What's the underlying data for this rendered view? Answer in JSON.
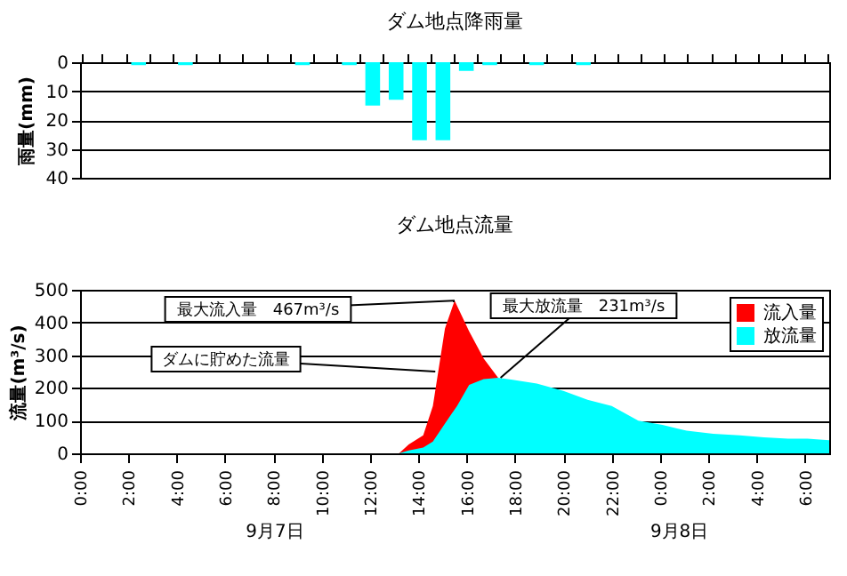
{
  "chart_data": [
    {
      "type": "bar",
      "title": "ダム地点降雨量",
      "ylabel": "雨量(mm)",
      "categories": [
        null,
        null,
        null,
        null,
        null,
        null,
        null,
        null,
        null,
        null,
        null,
        null,
        null,
        null,
        null,
        null,
        null,
        null,
        null,
        null,
        null,
        null,
        null,
        null,
        null,
        null,
        null,
        null,
        null,
        null,
        null,
        null
      ],
      "values": [
        null,
        null,
        1,
        null,
        1,
        null,
        null,
        null,
        null,
        1,
        null,
        1,
        15,
        13,
        27,
        27,
        3,
        1,
        null,
        1,
        null,
        1,
        null,
        null,
        null,
        null,
        null,
        null,
        null,
        null,
        null,
        null
      ],
      "color": "#00ffff",
      "ylim": [
        40,
        0
      ],
      "yticks": [
        0,
        10,
        20,
        30,
        40
      ],
      "grid": "y"
    },
    {
      "type": "area",
      "title": "ダム地点流量",
      "ylabel": "流量(m³/s)",
      "xlim": [
        "--09-07T00:00",
        "--09-08T07:00"
      ],
      "xticks": [
        {
          "value": "--09-07T00:00",
          "label": "0:00"
        },
        {
          "value": "--09-07T02:00",
          "label": "2:00"
        },
        {
          "value": "--09-07T04:00",
          "label": "4:00"
        },
        {
          "value": "--09-07T06:00",
          "label": "6:00"
        },
        {
          "value": "--09-07T08:00",
          "label": "8:00"
        },
        {
          "value": "--09-07T10:00",
          "label": "10:00"
        },
        {
          "value": "--09-07T12:00",
          "label": "12:00"
        },
        {
          "value": "--09-07T14:00",
          "label": "14:00"
        },
        {
          "value": "--09-07T16:00",
          "label": "16:00"
        },
        {
          "value": "--09-07T18:00",
          "label": "18:00"
        },
        {
          "value": "--09-07T20:00",
          "label": "20:00"
        },
        {
          "value": "--09-07T22:00",
          "label": "22:00"
        },
        {
          "value": "--09-08T00:00",
          "label": "0:00"
        },
        {
          "value": "--09-08T02:00",
          "label": "2:00"
        },
        {
          "value": "--09-08T04:00",
          "label": "4:00"
        },
        {
          "value": "--09-08T06:00",
          "label": "6:00"
        }
      ],
      "ylim": [
        0,
        500
      ],
      "yticks": [
        0,
        100,
        200,
        300,
        400,
        500
      ],
      "grid": "y",
      "legend": "top right",
      "series": [
        {
          "name": "流入量",
          "color": "#ff0000",
          "x": [
            "--09-07T00:00",
            "--09-07T13:12",
            "--09-07T13:36",
            "--09-07T14:12",
            "--09-07T14:36",
            "--09-07T15:06",
            "--09-07T15:30",
            "--09-07T16:06",
            "--09-07T16:42",
            "--09-07T17:18"
          ],
          "values": [
            0,
            0,
            27,
            55,
            145,
            382,
            467,
            373,
            290,
            231
          ]
        },
        {
          "name": "放流量",
          "color": "#00ffff",
          "x": [
            "--09-07T00:00",
            "--09-07T13:12",
            "--09-07T13:36",
            "--09-07T14:12",
            "--09-07T14:36",
            "--09-07T15:06",
            "--09-07T15:36",
            "--09-07T16:06",
            "--09-07T16:42",
            "--09-07T17:18",
            "--09-07T17:54",
            "--09-07T18:54",
            "--09-07T20:00",
            "--09-07T21:00",
            "--09-07T22:00",
            "--09-07T23:06",
            "--09-08T00:06",
            "--09-08T01:06",
            "--09-08T02:12",
            "--09-08T03:18",
            "--09-08T04:18",
            "--09-08T05:18",
            "--09-08T06:06",
            "--09-08T07:00"
          ],
          "values": [
            0,
            0,
            9,
            18,
            36,
            91,
            145,
            209,
            227,
            231,
            225,
            213,
            191,
            164,
            145,
            100,
            87,
            69,
            60,
            55,
            49,
            45,
            45,
            40
          ]
        }
      ],
      "annotations": [
        {
          "text": "最大流入量　467m³/s",
          "x": "--09-07T15:30",
          "y": 467
        },
        {
          "text": "ダムに貯めた流量",
          "x": "--09-07T14:42",
          "y": 250
        },
        {
          "text": "最大放流量　231m³/s",
          "x": "--09-07T17:24",
          "y": 231
        },
        "9月7日",
        "9月8日"
      ]
    }
  ]
}
